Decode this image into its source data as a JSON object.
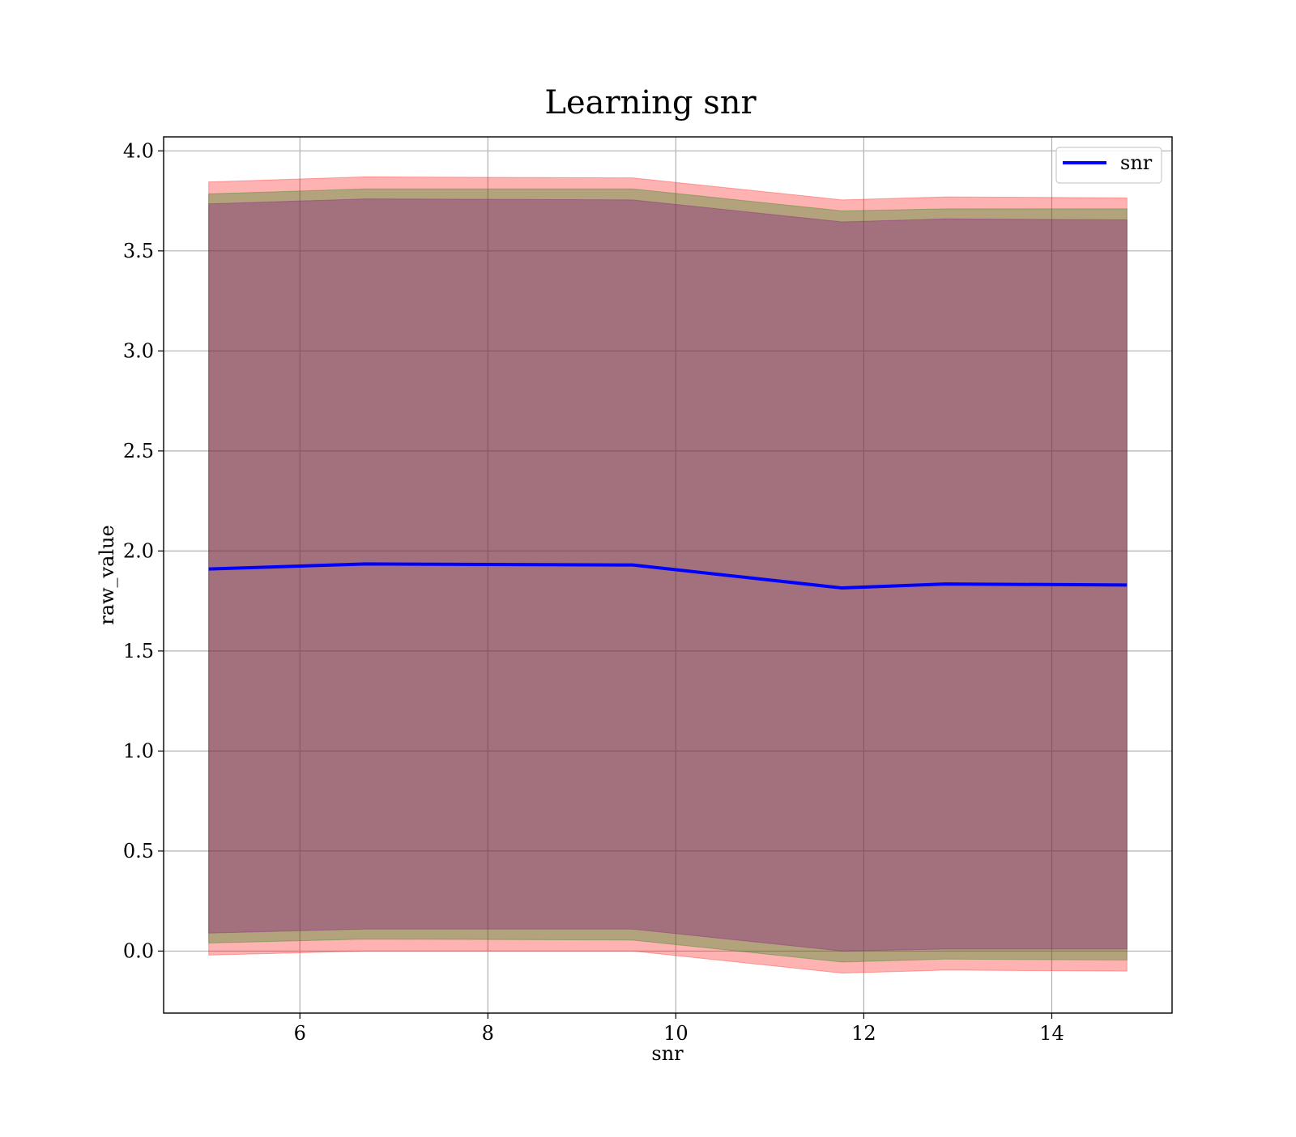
{
  "chart_data": {
    "type": "line",
    "title": "Learning snr",
    "xlabel": "snr",
    "ylabel": "raw_value",
    "xlim": [
      4.55,
      15.28
    ],
    "ylim": [
      -0.31,
      4.07
    ],
    "xticks": [
      6,
      8,
      10,
      12,
      14
    ],
    "xtick_labels": [
      "6",
      "8",
      "10",
      "12",
      "14"
    ],
    "yticks": [
      0.0,
      0.5,
      1.0,
      1.5,
      2.0,
      2.5,
      3.0,
      3.5,
      4.0
    ],
    "ytick_labels": [
      "0.0",
      "0.5",
      "1.0",
      "1.5",
      "2.0",
      "2.5",
      "3.0",
      "3.5",
      "4.0"
    ],
    "grid": true,
    "legend_position": "upper right",
    "x": [
      5.03,
      6.7,
      9.54,
      11.77,
      12.87,
      14.8
    ],
    "series": [
      {
        "name": "snr",
        "color": "#0000ff",
        "values": [
          1.91,
          1.935,
          1.93,
          1.815,
          1.835,
          1.83
        ]
      }
    ],
    "bands": [
      {
        "color": "#ff0000",
        "opacity": 0.3,
        "lower": [
          -0.02,
          0.0,
          0.0,
          -0.11,
          -0.095,
          -0.1
        ],
        "upper": [
          3.845,
          3.87,
          3.865,
          3.755,
          3.77,
          3.765
        ]
      },
      {
        "color": "#008000",
        "opacity": 0.3,
        "lower": [
          0.04,
          0.06,
          0.055,
          -0.055,
          -0.04,
          -0.045
        ],
        "upper": [
          3.785,
          3.81,
          3.81,
          3.7,
          3.71,
          3.71
        ]
      },
      {
        "color": "#800080",
        "opacity": 0.3,
        "lower": [
          0.09,
          0.11,
          0.11,
          0.0,
          0.01,
          0.01
        ],
        "upper": [
          3.735,
          3.76,
          3.755,
          3.645,
          3.66,
          3.655
        ]
      }
    ]
  }
}
